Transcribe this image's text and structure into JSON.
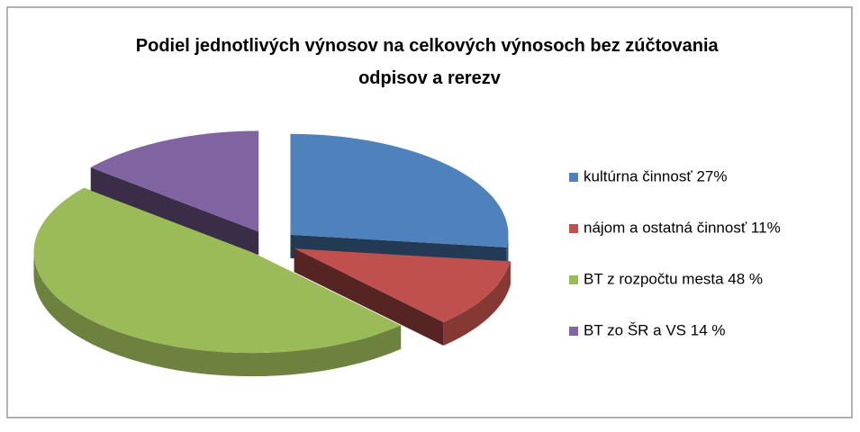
{
  "chart_data": {
    "type": "pie3d",
    "title": "Podiel jednotlivých výnosov na celkových výnosoch bez zúčtovania odpisov a rerezv",
    "categories": [
      "kultúrna činnosť 27%",
      "nájom a ostatná činnosť 11%",
      "BT z rozpočtu mesta 48 %",
      "BT zo ŠR a VS 14 %"
    ],
    "values": [
      27,
      11,
      48,
      14
    ],
    "colors": [
      "#4f81bd",
      "#c0504d",
      "#9bbb59",
      "#8064a2"
    ],
    "legend": "right"
  }
}
